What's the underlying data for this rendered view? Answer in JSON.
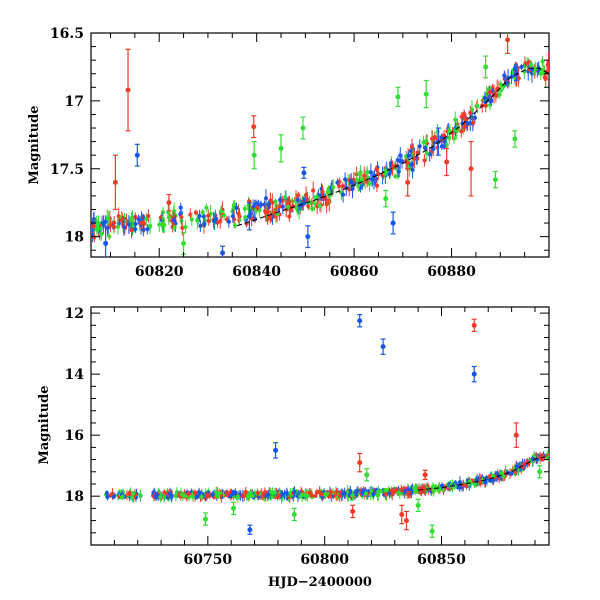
{
  "chart_data": [
    {
      "type": "scatter",
      "title": "",
      "xlabel": "",
      "ylabel": "Magnitude",
      "xlim": [
        60806,
        60900
      ],
      "ylim": [
        18.15,
        16.5
      ],
      "y_inverted": true,
      "grid": false,
      "x_ticks": [
        60820,
        60840,
        60860,
        60880
      ],
      "y_ticks": [
        16.5,
        17,
        17.5,
        18
      ],
      "x_tick_labels": [
        "60820",
        "60840",
        "60860",
        "60880"
      ],
      "y_tick_labels": [
        "16.5",
        "17",
        "17.5",
        "18"
      ],
      "colors": {
        "blue": "#1a56e6",
        "green": "#33dd33",
        "red": "#f03a2a",
        "model": "#000000"
      },
      "trend": {
        "x": [
          60806,
          60816,
          60826,
          60836,
          60846,
          60852,
          60858,
          60864,
          60870,
          60876,
          60882,
          60888,
          60892,
          60896,
          60900
        ],
        "y": [
          17.93,
          17.89,
          17.86,
          17.84,
          17.78,
          17.72,
          17.64,
          17.56,
          17.46,
          17.34,
          17.18,
          16.97,
          16.83,
          16.76,
          16.79
        ]
      },
      "model_curve": {
        "x": [
          60836,
          60846,
          60852,
          60858,
          60864,
          60870,
          60876,
          60882,
          60888,
          60892,
          60894,
          60896,
          60898,
          60900
        ],
        "y": [
          17.92,
          17.8,
          17.73,
          17.65,
          17.56,
          17.46,
          17.34,
          17.18,
          16.98,
          16.83,
          16.79,
          16.76,
          16.76,
          16.8
        ]
      },
      "series": [
        {
          "color_key": "blue",
          "points": [
            {
              "x": 60815.5,
              "y": 17.4,
              "err": 0.08
            },
            {
              "x": 60809.0,
              "y": 18.05,
              "err": 0.12
            },
            {
              "x": 60838.5,
              "y": 17.85,
              "err": 0.1
            },
            {
              "x": 60849.7,
              "y": 17.53,
              "err": 0.04
            },
            {
              "x": 60850.5,
              "y": 18.0,
              "err": 0.08
            },
            {
              "x": 60877.3,
              "y": 17.3,
              "err": 0.1
            },
            {
              "x": 60893.3,
              "y": 16.8,
              "err": 0.05
            },
            {
              "x": 60868.0,
              "y": 17.9,
              "err": 0.08
            },
            {
              "x": 60833.0,
              "y": 18.12,
              "err": 0.05
            }
          ]
        },
        {
          "color_key": "green",
          "points": [
            {
              "x": 60849.5,
              "y": 17.2,
              "err": 0.08
            },
            {
              "x": 60845.0,
              "y": 17.35,
              "err": 0.1
            },
            {
              "x": 60869.0,
              "y": 16.97,
              "err": 0.07
            },
            {
              "x": 60874.8,
              "y": 16.95,
              "err": 0.1
            },
            {
              "x": 60893.0,
              "y": 17.28,
              "err": 0.06
            },
            {
              "x": 60887.0,
              "y": 16.75,
              "err": 0.08
            },
            {
              "x": 60889.0,
              "y": 17.58,
              "err": 0.06
            },
            {
              "x": 60839.5,
              "y": 17.4,
              "err": 0.1
            },
            {
              "x": 60825.0,
              "y": 18.05,
              "err": 0.08
            },
            {
              "x": 60866.5,
              "y": 17.72,
              "err": 0.06
            }
          ]
        },
        {
          "color_key": "red",
          "points": [
            {
              "x": 60813.6,
              "y": 16.92,
              "err": 0.3
            },
            {
              "x": 60839.4,
              "y": 17.19,
              "err": 0.08
            },
            {
              "x": 60811.0,
              "y": 17.6,
              "err": 0.2
            },
            {
              "x": 60891.5,
              "y": 16.55,
              "err": 0.1
            },
            {
              "x": 60884.0,
              "y": 17.5,
              "err": 0.2
            },
            {
              "x": 60822.0,
              "y": 17.75,
              "err": 0.06
            },
            {
              "x": 60871.0,
              "y": 17.6,
              "err": 0.1
            },
            {
              "x": 60879.0,
              "y": 17.45,
              "err": 0.1
            }
          ]
        }
      ]
    },
    {
      "type": "scatter",
      "title": "",
      "xlabel": "HJD−2400000",
      "ylabel": "Magnitude",
      "xlim": [
        60700,
        60896
      ],
      "ylim": [
        19.6,
        11.8
      ],
      "y_inverted": true,
      "grid": false,
      "x_ticks": [
        60750,
        60800,
        60850
      ],
      "y_ticks": [
        12,
        14,
        16,
        18
      ],
      "x_tick_labels": [
        "60750",
        "60800",
        "60850"
      ],
      "y_tick_labels": [
        "12",
        "14",
        "16",
        "18"
      ],
      "colors": {
        "blue": "#1a56e6",
        "green": "#33dd33",
        "red": "#f03a2a",
        "model": "#000000"
      },
      "trend": {
        "x": [
          60706,
          60720,
          60740,
          60760,
          60780,
          60800,
          60820,
          60840,
          60850,
          60860,
          60870,
          60880,
          60886,
          60890,
          60896
        ],
        "y": [
          17.98,
          17.97,
          17.96,
          17.95,
          17.95,
          17.93,
          17.9,
          17.8,
          17.72,
          17.6,
          17.45,
          17.2,
          16.95,
          16.75,
          16.7
        ]
      },
      "model_curve": {
        "x": [
          60840,
          60850,
          60860,
          60870,
          60880,
          60886,
          60890,
          60894,
          60896
        ],
        "y": [
          17.8,
          17.72,
          17.6,
          17.45,
          17.2,
          16.95,
          16.78,
          16.72,
          16.75
        ]
      },
      "series": [
        {
          "color_key": "blue",
          "points": [
            {
              "x": 60815,
              "y": 12.25,
              "err": 0.2
            },
            {
              "x": 60825,
              "y": 13.1,
              "err": 0.25
            },
            {
              "x": 60864,
              "y": 14.0,
              "err": 0.25
            },
            {
              "x": 60779,
              "y": 16.5,
              "err": 0.25
            },
            {
              "x": 60768,
              "y": 19.1,
              "err": 0.15
            }
          ]
        },
        {
          "color_key": "green",
          "points": [
            {
              "x": 60749,
              "y": 18.75,
              "err": 0.2
            },
            {
              "x": 60787,
              "y": 18.6,
              "err": 0.2
            },
            {
              "x": 60846,
              "y": 19.15,
              "err": 0.2
            },
            {
              "x": 60840,
              "y": 18.3,
              "err": 0.2
            },
            {
              "x": 60892,
              "y": 17.2,
              "err": 0.2
            },
            {
              "x": 60818,
              "y": 17.3,
              "err": 0.2
            },
            {
              "x": 60761,
              "y": 18.4,
              "err": 0.2
            }
          ]
        },
        {
          "color_key": "red",
          "points": [
            {
              "x": 60864,
              "y": 12.4,
              "err": 0.2
            },
            {
              "x": 60882,
              "y": 16.0,
              "err": 0.4
            },
            {
              "x": 60815,
              "y": 16.9,
              "err": 0.3
            },
            {
              "x": 60833,
              "y": 18.6,
              "err": 0.3
            },
            {
              "x": 60835,
              "y": 18.8,
              "err": 0.3
            },
            {
              "x": 60812,
              "y": 18.5,
              "err": 0.2
            },
            {
              "x": 60836,
              "y": 17.95,
              "err": 0.1
            },
            {
              "x": 60843,
              "y": 17.3,
              "err": 0.15
            }
          ]
        }
      ]
    }
  ]
}
